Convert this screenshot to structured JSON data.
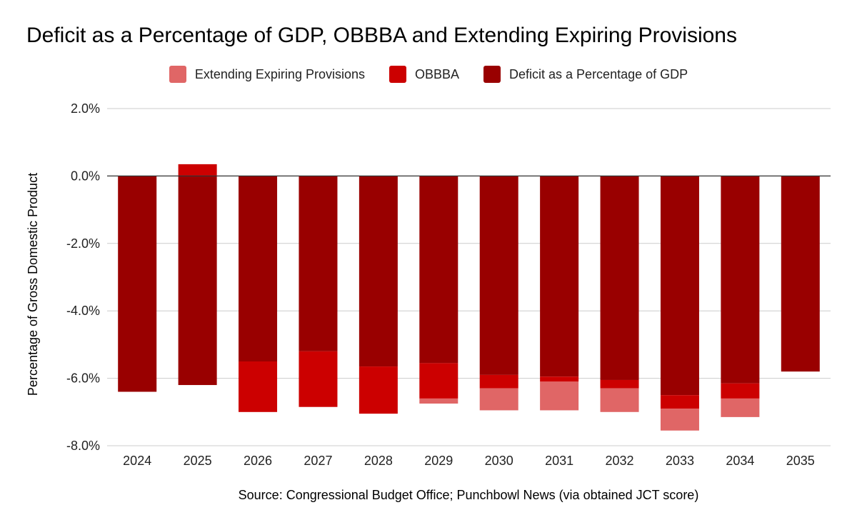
{
  "chart_data": {
    "type": "bar",
    "stacked": true,
    "title": "Deficit as a Percentage of GDP, OBBBA and Extending Expiring Provisions",
    "xlabel": "",
    "ylabel": "Percentage of Gross Domestic Product",
    "source": "Source: Congressional Budget Office; Punchbowl News (via obtained JCT score)",
    "ylim": [
      -8,
      2
    ],
    "yticks": [
      2,
      0,
      -2,
      -4,
      -6,
      -8
    ],
    "ytick_labels": [
      "2.0%",
      "0.0%",
      "-2.0%",
      "-4.0%",
      "-6.0%",
      "-8.0%"
    ],
    "grid": true,
    "legend_position": "top",
    "categories": [
      "2024",
      "2025",
      "2026",
      "2027",
      "2028",
      "2029",
      "2030",
      "2031",
      "2032",
      "2033",
      "2034",
      "2035"
    ],
    "series": [
      {
        "name": "Deficit as a Percentage of GDP",
        "color": "#990000",
        "values": [
          -6.4,
          -6.2,
          -5.5,
          -5.2,
          -5.65,
          -5.55,
          -5.9,
          -5.95,
          -6.05,
          -6.5,
          -6.15,
          -5.8
        ]
      },
      {
        "name": "OBBBA",
        "color": "#cc0000",
        "values": [
          0,
          0.35,
          -1.5,
          -1.65,
          -1.4,
          -1.05,
          -0.4,
          -0.15,
          -0.25,
          -0.4,
          -0.45,
          0
        ]
      },
      {
        "name": "Extending Expiring Provisions",
        "color": "#e06666",
        "values": [
          0,
          0,
          0,
          0,
          0,
          -0.15,
          -0.65,
          -0.85,
          -0.7,
          -0.65,
          -0.55,
          0
        ]
      }
    ],
    "legend_order": [
      "Extending Expiring Provisions",
      "OBBBA",
      "Deficit as a Percentage of GDP"
    ]
  }
}
